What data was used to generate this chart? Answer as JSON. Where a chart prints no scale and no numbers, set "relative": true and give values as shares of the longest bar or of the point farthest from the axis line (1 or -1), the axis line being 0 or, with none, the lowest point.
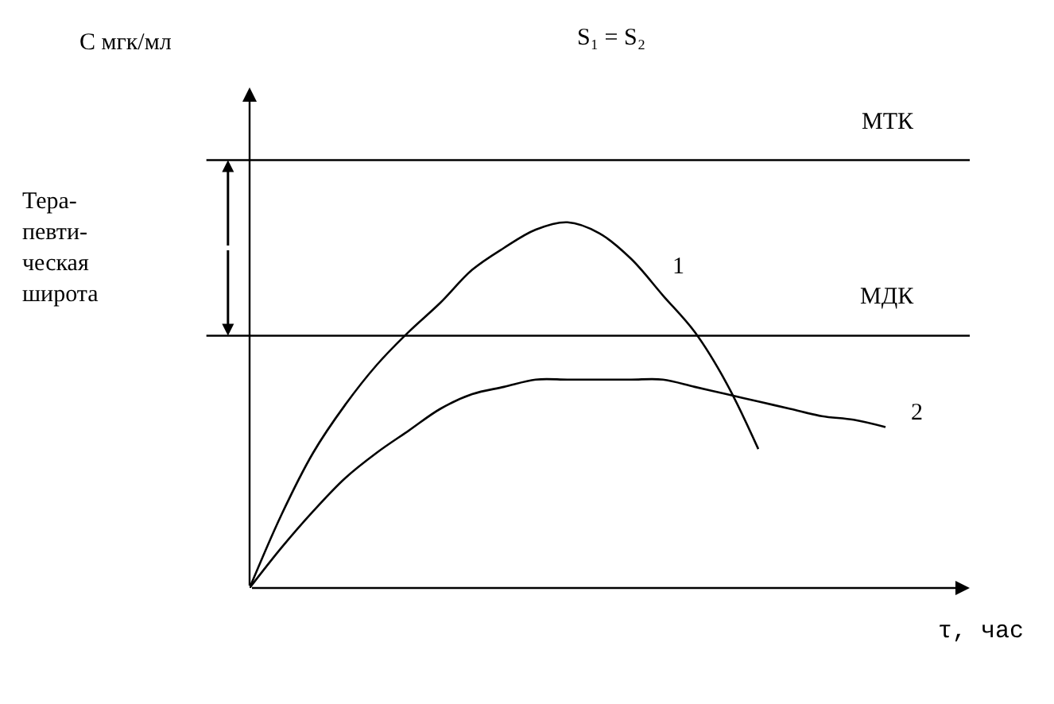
{
  "chart_data": {
    "type": "line",
    "title": "S₁ = S₂",
    "xlabel": "τ, час",
    "relative": true,
    "categories": [
      null,
      null,
      null,
      null,
      null,
      null,
      null,
      null,
      null,
      null,
      null,
      null,
      null,
      null,
      null,
      null,
      null,
      null,
      null,
      null,
      null
    ],
    "series": [
      {
        "name": "1",
        "color": "#000000",
        "values": [
          0,
          0.2,
          0.37,
          0.5,
          0.61,
          0.7,
          0.78,
          0.87,
          0.93,
          0.98,
          1,
          0.97,
          0.9,
          0.8,
          0.7,
          0.56,
          0.38,
          null,
          null,
          null,
          null
        ]
      },
      {
        "name": "2",
        "color": "#000000",
        "values": [
          0,
          0.11,
          0.21,
          0.3,
          0.37,
          0.43,
          0.49,
          0.53,
          0.55,
          0.57,
          0.57,
          0.57,
          0.57,
          0.57,
          0.55,
          0.53,
          0.51,
          0.49,
          0.47,
          0.46,
          0.44
        ]
      }
    ],
    "ref_lines": [
      {
        "axis": "y",
        "value": 1.17,
        "label": "МТК",
        "color": "#000000"
      },
      {
        "axis": "y",
        "value": 0.69,
        "label": "МДК",
        "color": "#000000"
      }
    ],
    "annotations": [
      "С мгк/мл",
      "Тера-\nпевти-\nческая\nширота"
    ],
    "marker": "none",
    "line_style": "solid",
    "legend": false
  }
}
